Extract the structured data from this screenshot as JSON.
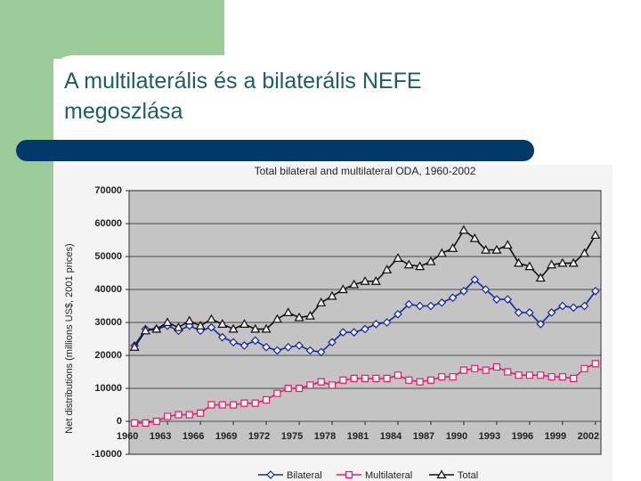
{
  "slide": {
    "title": "A multilaterális és a bilaterális NEFE megoszlása"
  },
  "chart_data": {
    "type": "line",
    "title": "Total bilateral and multilateral ODA, 1960-2002",
    "y_label": "Net distributions (millions US$, 2001 prices)",
    "x": [
      1960,
      1961,
      1962,
      1963,
      1964,
      1965,
      1966,
      1967,
      1968,
      1969,
      1970,
      1971,
      1972,
      1973,
      1974,
      1975,
      1976,
      1977,
      1978,
      1979,
      1980,
      1981,
      1982,
      1983,
      1984,
      1985,
      1986,
      1987,
      1988,
      1989,
      1990,
      1991,
      1992,
      1993,
      1994,
      1995,
      1996,
      1997,
      1998,
      1999,
      2000,
      2001,
      2002
    ],
    "series": [
      {
        "name": "Bilateral",
        "color": "#1a2a9a",
        "marker": "diamond",
        "values": [
          23000,
          28000,
          28000,
          29000,
          27500,
          29000,
          27500,
          28500,
          25500,
          24000,
          23000,
          24500,
          22500,
          21500,
          22500,
          23000,
          21500,
          21000,
          24000,
          27000,
          27000,
          28000,
          29500,
          30000,
          32500,
          35500,
          35000,
          35000,
          36000,
          37500,
          39500,
          43000,
          40000,
          37000,
          37000,
          33000,
          33000,
          29500,
          33000,
          35000,
          34500,
          35000,
          39500
        ]
      },
      {
        "name": "Multilateral",
        "color": "#e0206a",
        "marker": "square",
        "values": [
          -500,
          -500,
          0,
          1500,
          2000,
          2000,
          2500,
          5000,
          5000,
          5000,
          5500,
          5500,
          6500,
          8500,
          10000,
          10000,
          11000,
          12000,
          11000,
          12500,
          13000,
          13000,
          13000,
          13000,
          14000,
          12500,
          12000,
          12500,
          13500,
          13500,
          15500,
          16000,
          15500,
          16500,
          15000,
          14000,
          14000,
          14000,
          13500,
          13500,
          13000,
          16000,
          17500
        ]
      },
      {
        "name": "Total",
        "color": "#111111",
        "marker": "triangle",
        "values": [
          22500,
          27500,
          28000,
          30000,
          28500,
          30500,
          29000,
          31000,
          29500,
          28000,
          29500,
          28000,
          28000,
          31000,
          33000,
          31500,
          32000,
          36000,
          38000,
          40000,
          41500,
          42500,
          42500,
          46000,
          49500,
          47500,
          47000,
          48500,
          51000,
          52500,
          58000,
          55500,
          52000,
          52000,
          53500,
          48000,
          47000,
          43500,
          47500,
          48000,
          48000,
          51000,
          56500
        ]
      }
    ],
    "xlim": [
      1959.5,
      2002.5
    ],
    "xticks": [
      1960,
      1963,
      1966,
      1969,
      1972,
      1975,
      1978,
      1981,
      1984,
      1987,
      1990,
      1993,
      1996,
      1999,
      2002
    ],
    "ylim": [
      -10000,
      70000
    ],
    "yticks": [
      70000,
      60000,
      50000,
      40000,
      30000,
      20000,
      10000,
      0,
      -10000
    ],
    "grid": true,
    "legend": "bottom"
  }
}
